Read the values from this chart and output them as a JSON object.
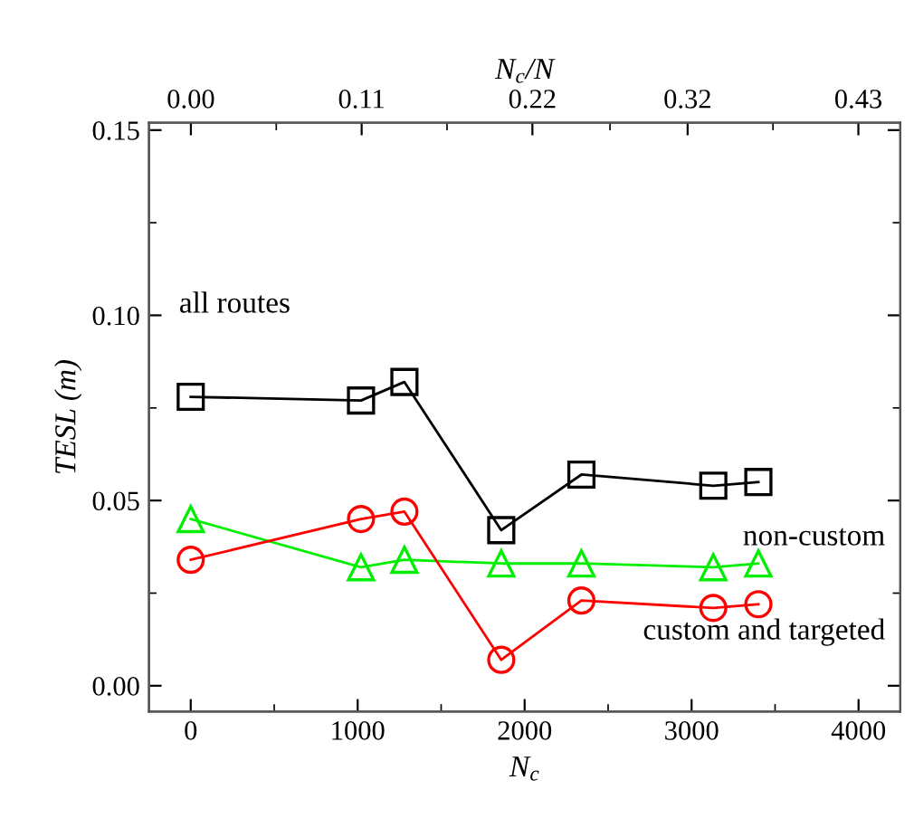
{
  "chart_data": {
    "type": "line",
    "xlabel": "N$_{c}$",
    "x2label": "N$_{c}$/N",
    "ylabel": "TESL (m)",
    "x": [
      0,
      1020,
      1280,
      1860,
      2340,
      3130,
      3400
    ],
    "series": [
      {
        "color": "#000000",
        "marker": "square",
        "values": [
          0.078,
          0.077,
          0.082,
          0.042,
          0.057,
          0.054,
          0.055
        ]
      },
      {
        "color": "#00ee00",
        "marker": "triangle",
        "values": [
          0.045,
          0.032,
          0.034,
          0.033,
          0.033,
          0.032,
          0.033
        ]
      },
      {
        "color": "#ff0000",
        "marker": "circle",
        "values": [
          0.034,
          0.045,
          0.047,
          0.007,
          0.023,
          0.021,
          0.022
        ]
      }
    ],
    "xlim": [
      -250,
      4250
    ],
    "xticks": [
      0,
      1000,
      2000,
      3000,
      4000
    ],
    "x2lim": [
      -0.027,
      0.457
    ],
    "x2ticks": [
      {
        "value": 0,
        "label": "0.00"
      },
      0.11,
      0.22,
      0.32,
      0.43
    ],
    "ylim": [
      -0.007,
      0.152
    ],
    "yticks": [
      {
        "value": 0,
        "label": "0.00"
      },
      {
        "value": 0.05,
        "label": "0.05"
      },
      {
        "value": 0.1,
        "label": "0.10"
      },
      {
        "value": 0.15,
        "label": "0.15"
      }
    ],
    "annotations": [
      "all routes",
      "non-custom",
      "custom and targeted"
    ],
    "grid": false,
    "legend": false,
    "line_style": "solid"
  }
}
